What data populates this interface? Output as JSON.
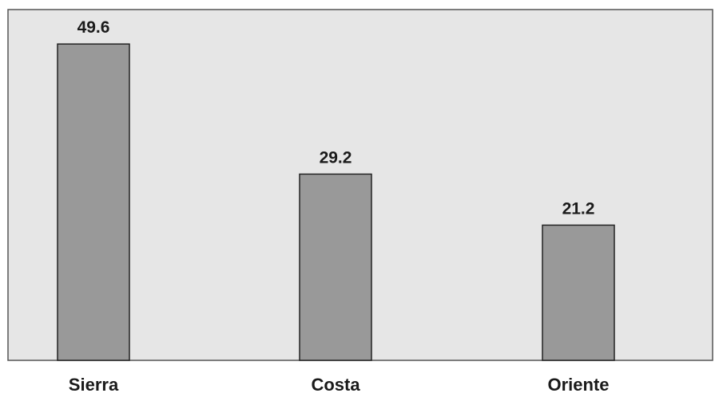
{
  "chart_data": {
    "type": "bar",
    "title": "",
    "xlabel": "",
    "ylabel": "",
    "categories": [
      "Sierra",
      "Costa",
      "Oriente"
    ],
    "values": [
      49.6,
      29.2,
      21.2
    ],
    "value_labels": [
      "49.6",
      "29.2",
      "21.2"
    ],
    "ylim": [
      0,
      55
    ],
    "grid": false,
    "legend": "none",
    "colors": {
      "plot_background": "#e6e6e6",
      "bar_fill": "#999999",
      "bar_stroke": "#222222",
      "frame": "#555555"
    }
  }
}
